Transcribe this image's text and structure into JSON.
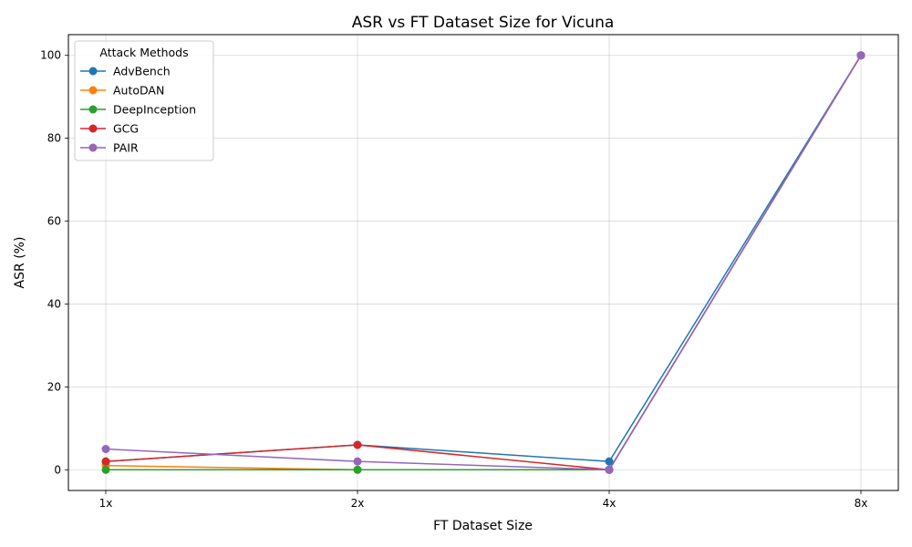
{
  "chart_data": {
    "type": "line",
    "title": "ASR vs FT Dataset Size for Vicuna",
    "xlabel": "FT Dataset Size",
    "ylabel": "ASR (%)",
    "categories": [
      "1x",
      "2x",
      "4x",
      "8x"
    ],
    "ylim": [
      -5,
      105
    ],
    "yticks": [
      0,
      20,
      40,
      60,
      80,
      100
    ],
    "grid": true,
    "legend": {
      "title": "Attack Methods",
      "placement": "top-left"
    },
    "series": [
      {
        "name": "AdvBench",
        "color": "#1f77b4",
        "values": [
          2,
          6,
          2,
          100
        ]
      },
      {
        "name": "AutoDAN",
        "color": "#ff7f0e",
        "values": [
          1,
          0,
          0,
          100
        ]
      },
      {
        "name": "DeepInception",
        "color": "#2ca02c",
        "values": [
          0,
          0,
          0,
          100
        ]
      },
      {
        "name": "GCG",
        "color": "#d62728",
        "values": [
          2,
          6,
          0,
          100
        ]
      },
      {
        "name": "PAIR",
        "color": "#9467bd",
        "values": [
          5,
          2,
          0,
          100
        ]
      }
    ]
  }
}
